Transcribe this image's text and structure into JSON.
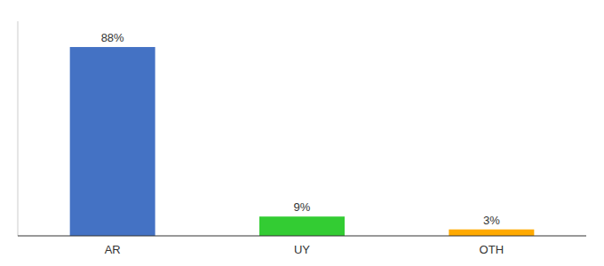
{
  "chart_data": {
    "type": "bar",
    "categories": [
      "AR",
      "UY",
      "OTH"
    ],
    "values": [
      88,
      9,
      3
    ],
    "value_labels": [
      "88%",
      "9%",
      "3%"
    ],
    "colors": [
      "#4472c4",
      "#33cc33",
      "#ffaa00"
    ],
    "ylim": [
      0,
      100
    ],
    "data_labels": true,
    "tick_labels": "x",
    "grid": false
  }
}
